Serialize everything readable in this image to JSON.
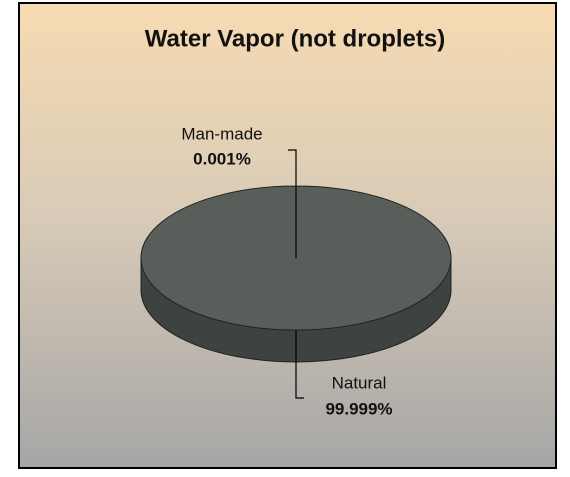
{
  "chart_data": {
    "type": "pie",
    "title": "Water Vapor (not droplets)",
    "categories": [
      "Man-made",
      "Natural"
    ],
    "values": [
      0.001,
      99.999
    ],
    "value_labels": [
      "0.001%",
      "99.999%"
    ],
    "color": "#5a5e5a"
  }
}
